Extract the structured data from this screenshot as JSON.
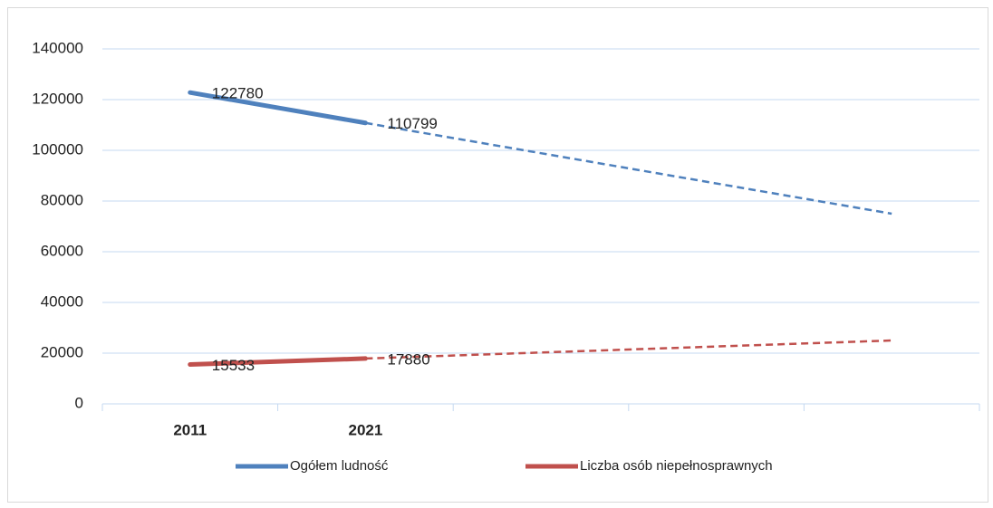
{
  "chart_data": {
    "type": "line",
    "categories": [
      "2011",
      "2021",
      null,
      null,
      null
    ],
    "series": [
      {
        "name": "Ogółem ludność",
        "color": "#4f81bd",
        "values": [
          122780,
          110799,
          null,
          null,
          null
        ],
        "trend_values": [
          null,
          null,
          null,
          null,
          75000
        ]
      },
      {
        "name": "Liczba osób niepełnosprawnych",
        "color": "#c0504d",
        "values": [
          15533,
          17880,
          null,
          null,
          null
        ],
        "trend_values": [
          null,
          null,
          null,
          null,
          25000
        ]
      }
    ],
    "ylim": [
      0,
      140000
    ],
    "yticks": [
      0,
      20000,
      40000,
      60000,
      80000,
      100000,
      120000,
      140000
    ],
    "grid": true,
    "legend": "bottom",
    "data_labels": true
  }
}
